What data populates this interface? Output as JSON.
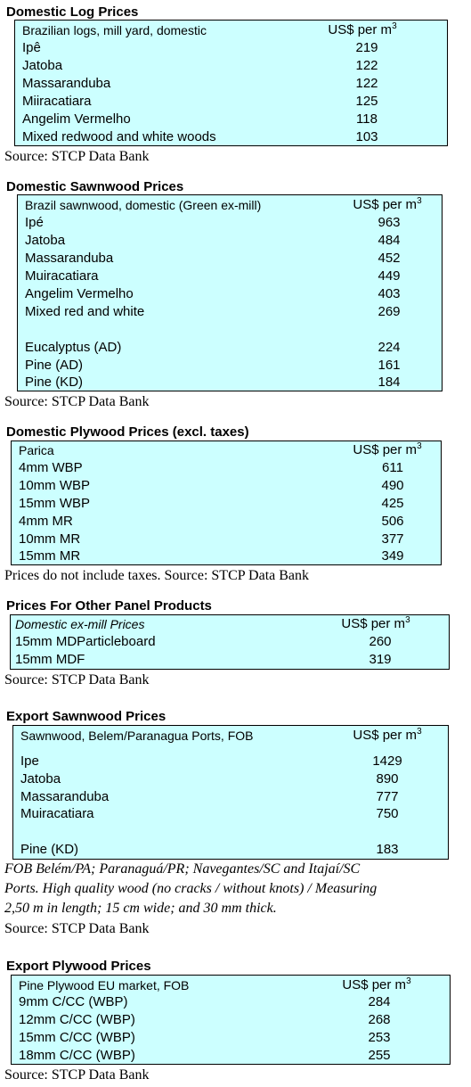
{
  "sections": [
    {
      "title": "Domestic Log Prices",
      "header": {
        "label": "Brazilian logs, mill yard, domestic",
        "unit": "US$ per m",
        "unit_sup": "3"
      },
      "rows": [
        {
          "name": "Ipê",
          "value": "219"
        },
        {
          "name": "Jatoba",
          "value": "122"
        },
        {
          "name": "Massaranduba",
          "value": "122"
        },
        {
          "name": "Miiracatiara",
          "value": "125"
        },
        {
          "name": "Angelim Vermelho",
          "value": "118"
        },
        {
          "name": "Mixed redwood and white woods",
          "value": "103"
        }
      ],
      "note": "Source: STCP Data Bank"
    },
    {
      "title": "Domestic Sawnwood Prices",
      "header": {
        "label": "Brazil sawnwood, domestic (Green ex-mill)",
        "unit": "US$ per m",
        "unit_sup": "3"
      },
      "rows": [
        {
          "name": "Ipé",
          "value": "963"
        },
        {
          "name": "Jatoba",
          "value": "484"
        },
        {
          "name": "Massaranduba",
          "value": "452"
        },
        {
          "name": "Muiracatiara",
          "value": "449"
        },
        {
          "name": "Angelim Vermelho",
          "value": "403"
        },
        {
          "name": "Mixed red and white",
          "value": "269"
        },
        {
          "name": "Eucalyptus (AD)",
          "value": "224"
        },
        {
          "name": "Pine (AD)",
          "value": "161"
        },
        {
          "name": "Pine (KD)",
          "value": "184"
        }
      ],
      "note": "Source: STCP Data Bank"
    },
    {
      "title": "Domestic Plywood Prices (excl. taxes)",
      "header": {
        "label": "Parica",
        "unit": "US$ per m",
        "unit_sup": "3"
      },
      "rows": [
        {
          "name": "4mm WBP",
          "value": "611"
        },
        {
          "name": "10mm WBP",
          "value": "490"
        },
        {
          "name": "15mm WBP",
          "value": "425"
        },
        {
          "name": "4mm MR",
          "value": "506"
        },
        {
          "name": "10mm MR",
          "value": "377"
        },
        {
          "name": "15mm MR",
          "value": "349"
        }
      ],
      "note": "Prices do not include taxes. Source: STCP Data Bank"
    },
    {
      "title": "Prices For Other Panel Products",
      "header": {
        "label": "Domestic ex-mill Prices",
        "unit": "US$ per m",
        "unit_sup": "3"
      },
      "rows": [
        {
          "name": "15mm MDParticleboard",
          "value": "260"
        },
        {
          "name": "15mm MDF",
          "value": "319"
        }
      ],
      "note": "Source: STCP Data Bank"
    },
    {
      "title": "Export Sawnwood Prices",
      "header": {
        "label": "Sawnwood, Belem/Paranagua Ports, FOB",
        "unit": "US$ per m",
        "unit_sup": "3"
      },
      "rows": [
        {
          "name": "Ipe",
          "value": "1429"
        },
        {
          "name": "Jatoba",
          "value": "890"
        },
        {
          "name": "Massaranduba",
          "value": "777"
        },
        {
          "name": "Muiracatiara",
          "value": "750"
        },
        {
          "name": "Pine (KD)",
          "value": "183"
        }
      ],
      "note_italic": [
        "FOB Belém/PA; Paranaguá/PR; Navegantes/SC and Itajaí/SC",
        "Ports. High quality wood (no cracks / without knots) / Measuring",
        "2,50 m in length; 15 cm wide; and 30 mm thick."
      ],
      "note": "Source: STCP Data Bank"
    },
    {
      "title": "Export Plywood Prices",
      "header": {
        "label": "Pine Plywood EU market, FOB",
        "unit": "US$ per m",
        "unit_sup": "3"
      },
      "rows": [
        {
          "name": "9mm C/CC (WBP)",
          "value": "284"
        },
        {
          "name": "12mm C/CC (WBP)",
          "value": "268"
        },
        {
          "name": "15mm C/CC (WBP)",
          "value": "253"
        },
        {
          "name": "18mm C/CC (WBP)",
          "value": "255"
        }
      ],
      "note": "Source: STCP Data Bank"
    }
  ]
}
